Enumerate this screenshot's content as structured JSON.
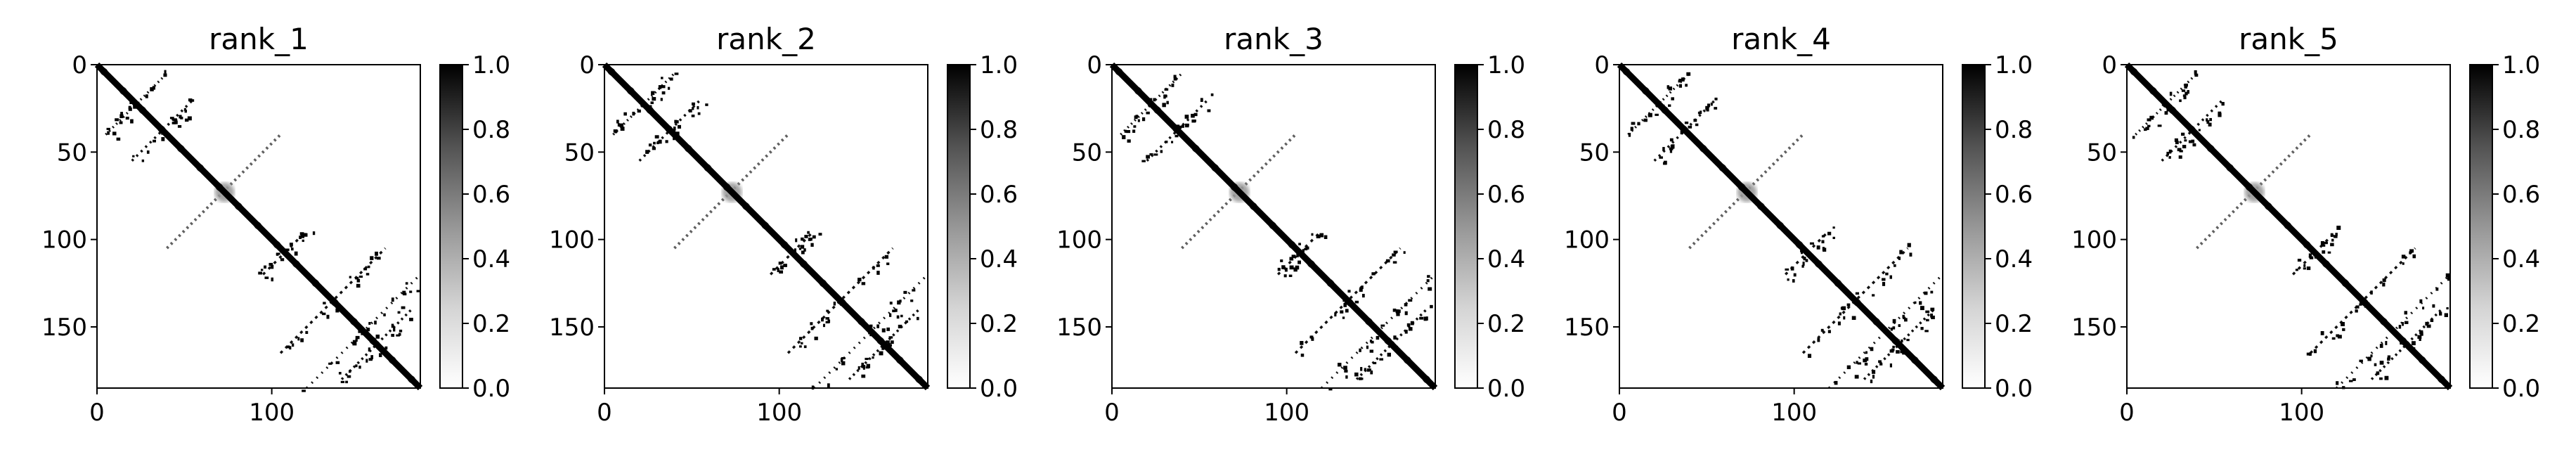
{
  "chart_data": [
    {
      "type": "heatmap",
      "title": "rank_1",
      "n": 185,
      "xlim": [
        0,
        185
      ],
      "ylim": [
        185,
        0
      ],
      "x_ticks": [
        0,
        100
      ],
      "y_ticks": [
        0,
        50,
        100,
        150
      ],
      "colorbar": {
        "range": [
          0.0,
          1.0
        ],
        "ticks": [
          "0.0",
          "0.2",
          "0.4",
          "0.6",
          "0.8",
          "1.0"
        ],
        "colormap": "Greys"
      },
      "matrix_description": {
        "diagonal": {
          "start": 0,
          "end": 185,
          "value": 1.0
        },
        "anti_diagonal_band": {
          "from": [
            40,
            105
          ],
          "to": [
            105,
            40
          ],
          "value": 0.8
        },
        "contact_strands": [
          {
            "from": [
              5,
              40
            ],
            "to": [
              40,
              5
            ]
          },
          {
            "from": [
              20,
              55
            ],
            "to": [
              55,
              20
            ]
          },
          {
            "from": [
              95,
              120
            ],
            "to": [
              120,
              95
            ]
          },
          {
            "from": [
              120,
              185
            ],
            "to": [
              185,
              120
            ]
          },
          {
            "from": [
              140,
              180
            ],
            "to": [
              180,
              140
            ]
          },
          {
            "from": [
              105,
              165
            ],
            "to": [
              165,
              105
            ]
          }
        ]
      }
    },
    {
      "type": "heatmap",
      "title": "rank_2",
      "n": 185,
      "xlim": [
        0,
        185
      ],
      "ylim": [
        185,
        0
      ],
      "x_ticks": [
        0,
        100
      ],
      "y_ticks": [
        0,
        50,
        100,
        150
      ],
      "colorbar": {
        "range": [
          0.0,
          1.0
        ],
        "ticks": [
          "0.0",
          "0.2",
          "0.4",
          "0.6",
          "0.8",
          "1.0"
        ],
        "colormap": "Greys"
      },
      "matrix_description": {
        "diagonal": {
          "start": 0,
          "end": 185,
          "value": 1.0
        },
        "anti_diagonal_band": {
          "from": [
            40,
            105
          ],
          "to": [
            105,
            40
          ],
          "value": 0.8
        },
        "contact_strands": [
          {
            "from": [
              5,
              40
            ],
            "to": [
              40,
              5
            ]
          },
          {
            "from": [
              20,
              55
            ],
            "to": [
              55,
              20
            ]
          },
          {
            "from": [
              95,
              120
            ],
            "to": [
              120,
              95
            ]
          },
          {
            "from": [
              120,
              185
            ],
            "to": [
              185,
              120
            ]
          },
          {
            "from": [
              140,
              180
            ],
            "to": [
              180,
              140
            ]
          },
          {
            "from": [
              105,
              165
            ],
            "to": [
              165,
              105
            ]
          }
        ]
      }
    },
    {
      "type": "heatmap",
      "title": "rank_3",
      "n": 185,
      "xlim": [
        0,
        185
      ],
      "ylim": [
        185,
        0
      ],
      "x_ticks": [
        0,
        100
      ],
      "y_ticks": [
        0,
        50,
        100,
        150
      ],
      "colorbar": {
        "range": [
          0.0,
          1.0
        ],
        "ticks": [
          "0.0",
          "0.2",
          "0.4",
          "0.6",
          "0.8",
          "1.0"
        ],
        "colormap": "Greys"
      },
      "matrix_description": {
        "diagonal": {
          "start": 0,
          "end": 185,
          "value": 1.0
        },
        "anti_diagonal_band": {
          "from": [
            40,
            105
          ],
          "to": [
            105,
            40
          ],
          "value": 0.8
        },
        "contact_strands": [
          {
            "from": [
              5,
              40
            ],
            "to": [
              40,
              5
            ]
          },
          {
            "from": [
              20,
              55
            ],
            "to": [
              55,
              20
            ]
          },
          {
            "from": [
              95,
              120
            ],
            "to": [
              120,
              95
            ]
          },
          {
            "from": [
              120,
              185
            ],
            "to": [
              185,
              120
            ]
          },
          {
            "from": [
              140,
              180
            ],
            "to": [
              180,
              140
            ]
          },
          {
            "from": [
              105,
              165
            ],
            "to": [
              165,
              105
            ]
          }
        ]
      }
    },
    {
      "type": "heatmap",
      "title": "rank_4",
      "n": 185,
      "xlim": [
        0,
        185
      ],
      "ylim": [
        185,
        0
      ],
      "x_ticks": [
        0,
        100
      ],
      "y_ticks": [
        0,
        50,
        100,
        150
      ],
      "colorbar": {
        "range": [
          0.0,
          1.0
        ],
        "ticks": [
          "0.0",
          "0.2",
          "0.4",
          "0.6",
          "0.8",
          "1.0"
        ],
        "colormap": "Greys"
      },
      "matrix_description": {
        "diagonal": {
          "start": 0,
          "end": 185,
          "value": 1.0
        },
        "anti_diagonal_band": {
          "from": [
            40,
            105
          ],
          "to": [
            105,
            40
          ],
          "value": 0.8
        },
        "contact_strands": [
          {
            "from": [
              5,
              40
            ],
            "to": [
              40,
              5
            ]
          },
          {
            "from": [
              20,
              55
            ],
            "to": [
              55,
              20
            ]
          },
          {
            "from": [
              95,
              120
            ],
            "to": [
              120,
              95
            ]
          },
          {
            "from": [
              120,
              185
            ],
            "to": [
              185,
              120
            ]
          },
          {
            "from": [
              140,
              180
            ],
            "to": [
              180,
              140
            ]
          },
          {
            "from": [
              105,
              165
            ],
            "to": [
              165,
              105
            ]
          }
        ]
      }
    },
    {
      "type": "heatmap",
      "title": "rank_5",
      "n": 185,
      "xlim": [
        0,
        185
      ],
      "ylim": [
        185,
        0
      ],
      "x_ticks": [
        0,
        100
      ],
      "y_ticks": [
        0,
        50,
        100,
        150
      ],
      "colorbar": {
        "range": [
          0.0,
          1.0
        ],
        "ticks": [
          "0.0",
          "0.2",
          "0.4",
          "0.6",
          "0.8",
          "1.0"
        ],
        "colormap": "Greys"
      },
      "matrix_description": {
        "diagonal": {
          "start": 0,
          "end": 185,
          "value": 1.0
        },
        "anti_diagonal_band": {
          "from": [
            40,
            105
          ],
          "to": [
            105,
            40
          ],
          "value": 0.8
        },
        "contact_strands": [
          {
            "from": [
              5,
              40
            ],
            "to": [
              40,
              5
            ]
          },
          {
            "from": [
              20,
              55
            ],
            "to": [
              55,
              20
            ]
          },
          {
            "from": [
              95,
              120
            ],
            "to": [
              120,
              95
            ]
          },
          {
            "from": [
              120,
              185
            ],
            "to": [
              185,
              120
            ]
          },
          {
            "from": [
              140,
              180
            ],
            "to": [
              180,
              140
            ]
          },
          {
            "from": [
              105,
              165
            ],
            "to": [
              165,
              105
            ]
          }
        ]
      }
    }
  ],
  "colors": {
    "axis": "#000000",
    "background": "#ffffff",
    "max": "#000000",
    "min": "#ffffff"
  }
}
